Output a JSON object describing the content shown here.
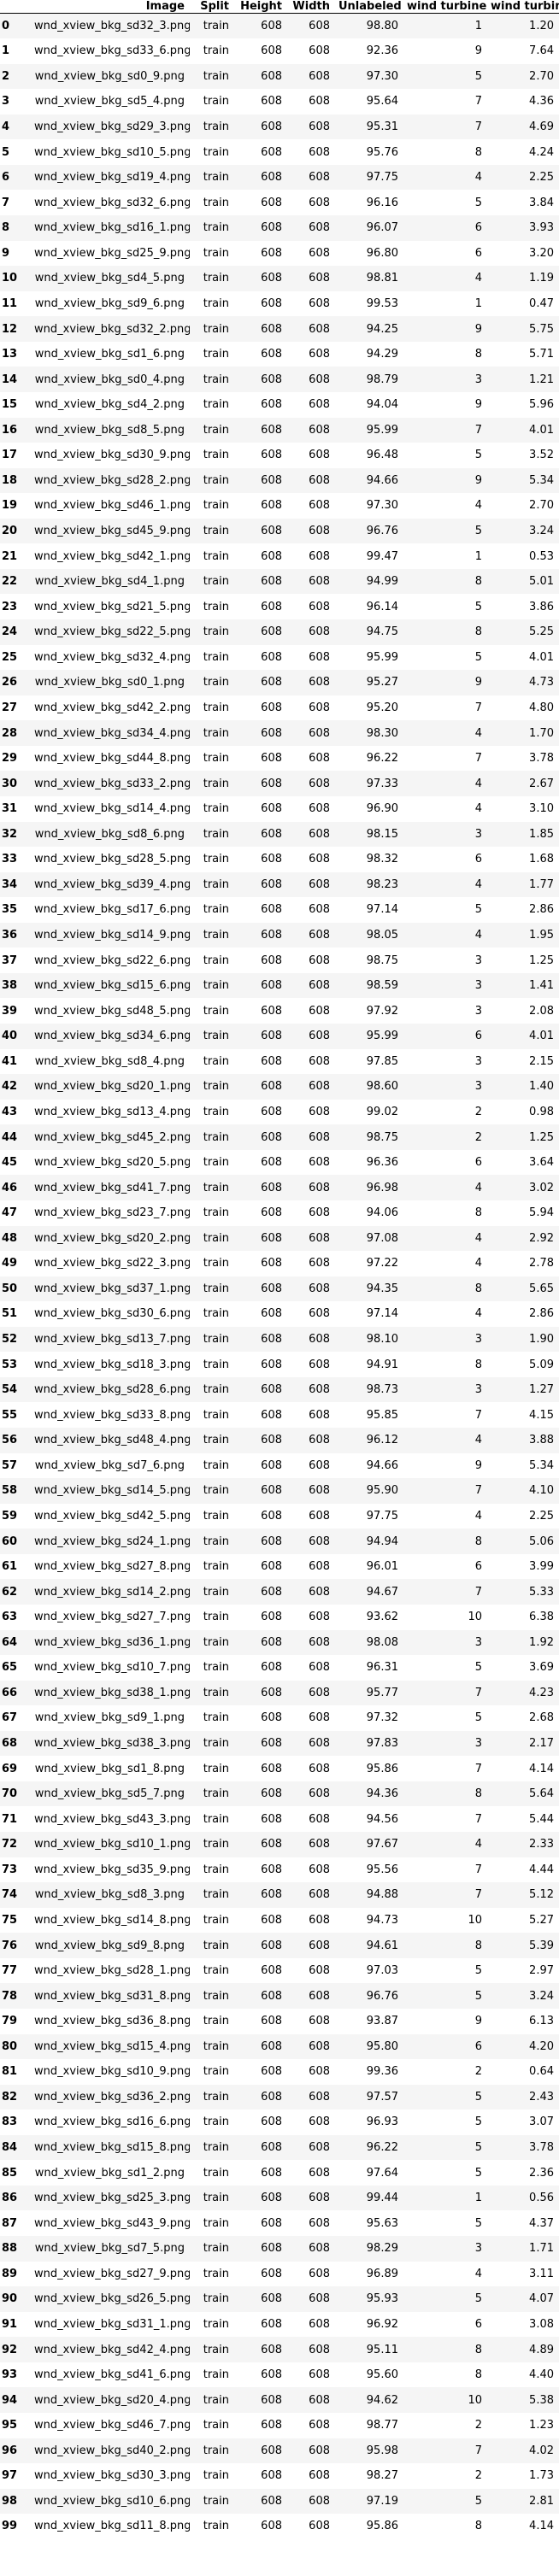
{
  "table": {
    "columns": [
      "",
      "Image",
      "Split",
      "Height",
      "Width",
      "Unlabeled",
      "wind turbine",
      "wind turbine"
    ],
    "rows": [
      [
        "0",
        "wnd_xview_bkg_sd32_3.png",
        "train",
        "608",
        "608",
        "98.80",
        "1",
        "1.20"
      ],
      [
        "1",
        "wnd_xview_bkg_sd33_6.png",
        "train",
        "608",
        "608",
        "92.36",
        "9",
        "7.64"
      ],
      [
        "2",
        "wnd_xview_bkg_sd0_9.png",
        "train",
        "608",
        "608",
        "97.30",
        "5",
        "2.70"
      ],
      [
        "3",
        "wnd_xview_bkg_sd5_4.png",
        "train",
        "608",
        "608",
        "95.64",
        "7",
        "4.36"
      ],
      [
        "4",
        "wnd_xview_bkg_sd29_3.png",
        "train",
        "608",
        "608",
        "95.31",
        "7",
        "4.69"
      ],
      [
        "5",
        "wnd_xview_bkg_sd10_5.png",
        "train",
        "608",
        "608",
        "95.76",
        "8",
        "4.24"
      ],
      [
        "6",
        "wnd_xview_bkg_sd19_4.png",
        "train",
        "608",
        "608",
        "97.75",
        "4",
        "2.25"
      ],
      [
        "7",
        "wnd_xview_bkg_sd32_6.png",
        "train",
        "608",
        "608",
        "96.16",
        "5",
        "3.84"
      ],
      [
        "8",
        "wnd_xview_bkg_sd16_1.png",
        "train",
        "608",
        "608",
        "96.07",
        "6",
        "3.93"
      ],
      [
        "9",
        "wnd_xview_bkg_sd25_9.png",
        "train",
        "608",
        "608",
        "96.80",
        "6",
        "3.20"
      ],
      [
        "10",
        "wnd_xview_bkg_sd4_5.png",
        "train",
        "608",
        "608",
        "98.81",
        "4",
        "1.19"
      ],
      [
        "11",
        "wnd_xview_bkg_sd9_6.png",
        "train",
        "608",
        "608",
        "99.53",
        "1",
        "0.47"
      ],
      [
        "12",
        "wnd_xview_bkg_sd32_2.png",
        "train",
        "608",
        "608",
        "94.25",
        "9",
        "5.75"
      ],
      [
        "13",
        "wnd_xview_bkg_sd1_6.png",
        "train",
        "608",
        "608",
        "94.29",
        "8",
        "5.71"
      ],
      [
        "14",
        "wnd_xview_bkg_sd0_4.png",
        "train",
        "608",
        "608",
        "98.79",
        "3",
        "1.21"
      ],
      [
        "15",
        "wnd_xview_bkg_sd4_2.png",
        "train",
        "608",
        "608",
        "94.04",
        "9",
        "5.96"
      ],
      [
        "16",
        "wnd_xview_bkg_sd8_5.png",
        "train",
        "608",
        "608",
        "95.99",
        "7",
        "4.01"
      ],
      [
        "17",
        "wnd_xview_bkg_sd30_9.png",
        "train",
        "608",
        "608",
        "96.48",
        "5",
        "3.52"
      ],
      [
        "18",
        "wnd_xview_bkg_sd28_2.png",
        "train",
        "608",
        "608",
        "94.66",
        "9",
        "5.34"
      ],
      [
        "19",
        "wnd_xview_bkg_sd46_1.png",
        "train",
        "608",
        "608",
        "97.30",
        "4",
        "2.70"
      ],
      [
        "20",
        "wnd_xview_bkg_sd45_9.png",
        "train",
        "608",
        "608",
        "96.76",
        "5",
        "3.24"
      ],
      [
        "21",
        "wnd_xview_bkg_sd42_1.png",
        "train",
        "608",
        "608",
        "99.47",
        "1",
        "0.53"
      ],
      [
        "22",
        "wnd_xview_bkg_sd4_1.png",
        "train",
        "608",
        "608",
        "94.99",
        "8",
        "5.01"
      ],
      [
        "23",
        "wnd_xview_bkg_sd21_5.png",
        "train",
        "608",
        "608",
        "96.14",
        "5",
        "3.86"
      ],
      [
        "24",
        "wnd_xview_bkg_sd22_5.png",
        "train",
        "608",
        "608",
        "94.75",
        "8",
        "5.25"
      ],
      [
        "25",
        "wnd_xview_bkg_sd32_4.png",
        "train",
        "608",
        "608",
        "95.99",
        "5",
        "4.01"
      ],
      [
        "26",
        "wnd_xview_bkg_sd0_1.png",
        "train",
        "608",
        "608",
        "95.27",
        "9",
        "4.73"
      ],
      [
        "27",
        "wnd_xview_bkg_sd42_2.png",
        "train",
        "608",
        "608",
        "95.20",
        "7",
        "4.80"
      ],
      [
        "28",
        "wnd_xview_bkg_sd34_4.png",
        "train",
        "608",
        "608",
        "98.30",
        "4",
        "1.70"
      ],
      [
        "29",
        "wnd_xview_bkg_sd44_8.png",
        "train",
        "608",
        "608",
        "96.22",
        "7",
        "3.78"
      ],
      [
        "30",
        "wnd_xview_bkg_sd33_2.png",
        "train",
        "608",
        "608",
        "97.33",
        "4",
        "2.67"
      ],
      [
        "31",
        "wnd_xview_bkg_sd14_4.png",
        "train",
        "608",
        "608",
        "96.90",
        "4",
        "3.10"
      ],
      [
        "32",
        "wnd_xview_bkg_sd8_6.png",
        "train",
        "608",
        "608",
        "98.15",
        "3",
        "1.85"
      ],
      [
        "33",
        "wnd_xview_bkg_sd28_5.png",
        "train",
        "608",
        "608",
        "98.32",
        "6",
        "1.68"
      ],
      [
        "34",
        "wnd_xview_bkg_sd39_4.png",
        "train",
        "608",
        "608",
        "98.23",
        "4",
        "1.77"
      ],
      [
        "35",
        "wnd_xview_bkg_sd17_6.png",
        "train",
        "608",
        "608",
        "97.14",
        "5",
        "2.86"
      ],
      [
        "36",
        "wnd_xview_bkg_sd14_9.png",
        "train",
        "608",
        "608",
        "98.05",
        "4",
        "1.95"
      ],
      [
        "37",
        "wnd_xview_bkg_sd22_6.png",
        "train",
        "608",
        "608",
        "98.75",
        "3",
        "1.25"
      ],
      [
        "38",
        "wnd_xview_bkg_sd15_6.png",
        "train",
        "608",
        "608",
        "98.59",
        "3",
        "1.41"
      ],
      [
        "39",
        "wnd_xview_bkg_sd48_5.png",
        "train",
        "608",
        "608",
        "97.92",
        "3",
        "2.08"
      ],
      [
        "40",
        "wnd_xview_bkg_sd34_6.png",
        "train",
        "608",
        "608",
        "95.99",
        "6",
        "4.01"
      ],
      [
        "41",
        "wnd_xview_bkg_sd8_4.png",
        "train",
        "608",
        "608",
        "97.85",
        "3",
        "2.15"
      ],
      [
        "42",
        "wnd_xview_bkg_sd20_1.png",
        "train",
        "608",
        "608",
        "98.60",
        "3",
        "1.40"
      ],
      [
        "43",
        "wnd_xview_bkg_sd13_4.png",
        "train",
        "608",
        "608",
        "99.02",
        "2",
        "0.98"
      ],
      [
        "44",
        "wnd_xview_bkg_sd45_2.png",
        "train",
        "608",
        "608",
        "98.75",
        "2",
        "1.25"
      ],
      [
        "45",
        "wnd_xview_bkg_sd20_5.png",
        "train",
        "608",
        "608",
        "96.36",
        "6",
        "3.64"
      ],
      [
        "46",
        "wnd_xview_bkg_sd41_7.png",
        "train",
        "608",
        "608",
        "96.98",
        "4",
        "3.02"
      ],
      [
        "47",
        "wnd_xview_bkg_sd23_7.png",
        "train",
        "608",
        "608",
        "94.06",
        "8",
        "5.94"
      ],
      [
        "48",
        "wnd_xview_bkg_sd20_2.png",
        "train",
        "608",
        "608",
        "97.08",
        "4",
        "2.92"
      ],
      [
        "49",
        "wnd_xview_bkg_sd22_3.png",
        "train",
        "608",
        "608",
        "97.22",
        "4",
        "2.78"
      ],
      [
        "50",
        "wnd_xview_bkg_sd37_1.png",
        "train",
        "608",
        "608",
        "94.35",
        "8",
        "5.65"
      ],
      [
        "51",
        "wnd_xview_bkg_sd30_6.png",
        "train",
        "608",
        "608",
        "97.14",
        "4",
        "2.86"
      ],
      [
        "52",
        "wnd_xview_bkg_sd13_7.png",
        "train",
        "608",
        "608",
        "98.10",
        "3",
        "1.90"
      ],
      [
        "53",
        "wnd_xview_bkg_sd18_3.png",
        "train",
        "608",
        "608",
        "94.91",
        "8",
        "5.09"
      ],
      [
        "54",
        "wnd_xview_bkg_sd28_6.png",
        "train",
        "608",
        "608",
        "98.73",
        "3",
        "1.27"
      ],
      [
        "55",
        "wnd_xview_bkg_sd33_8.png",
        "train",
        "608",
        "608",
        "95.85",
        "7",
        "4.15"
      ],
      [
        "56",
        "wnd_xview_bkg_sd48_4.png",
        "train",
        "608",
        "608",
        "96.12",
        "4",
        "3.88"
      ],
      [
        "57",
        "wnd_xview_bkg_sd7_6.png",
        "train",
        "608",
        "608",
        "94.66",
        "9",
        "5.34"
      ],
      [
        "58",
        "wnd_xview_bkg_sd14_5.png",
        "train",
        "608",
        "608",
        "95.90",
        "7",
        "4.10"
      ],
      [
        "59",
        "wnd_xview_bkg_sd42_5.png",
        "train",
        "608",
        "608",
        "97.75",
        "4",
        "2.25"
      ],
      [
        "60",
        "wnd_xview_bkg_sd24_1.png",
        "train",
        "608",
        "608",
        "94.94",
        "8",
        "5.06"
      ],
      [
        "61",
        "wnd_xview_bkg_sd27_8.png",
        "train",
        "608",
        "608",
        "96.01",
        "6",
        "3.99"
      ],
      [
        "62",
        "wnd_xview_bkg_sd14_2.png",
        "train",
        "608",
        "608",
        "94.67",
        "7",
        "5.33"
      ],
      [
        "63",
        "wnd_xview_bkg_sd27_7.png",
        "train",
        "608",
        "608",
        "93.62",
        "10",
        "6.38"
      ],
      [
        "64",
        "wnd_xview_bkg_sd36_1.png",
        "train",
        "608",
        "608",
        "98.08",
        "3",
        "1.92"
      ],
      [
        "65",
        "wnd_xview_bkg_sd10_7.png",
        "train",
        "608",
        "608",
        "96.31",
        "5",
        "3.69"
      ],
      [
        "66",
        "wnd_xview_bkg_sd38_1.png",
        "train",
        "608",
        "608",
        "95.77",
        "7",
        "4.23"
      ],
      [
        "67",
        "wnd_xview_bkg_sd9_1.png",
        "train",
        "608",
        "608",
        "97.32",
        "5",
        "2.68"
      ],
      [
        "68",
        "wnd_xview_bkg_sd38_3.png",
        "train",
        "608",
        "608",
        "97.83",
        "3",
        "2.17"
      ],
      [
        "69",
        "wnd_xview_bkg_sd1_8.png",
        "train",
        "608",
        "608",
        "95.86",
        "7",
        "4.14"
      ],
      [
        "70",
        "wnd_xview_bkg_sd5_7.png",
        "train",
        "608",
        "608",
        "94.36",
        "8",
        "5.64"
      ],
      [
        "71",
        "wnd_xview_bkg_sd43_3.png",
        "train",
        "608",
        "608",
        "94.56",
        "7",
        "5.44"
      ],
      [
        "72",
        "wnd_xview_bkg_sd10_1.png",
        "train",
        "608",
        "608",
        "97.67",
        "4",
        "2.33"
      ],
      [
        "73",
        "wnd_xview_bkg_sd35_9.png",
        "train",
        "608",
        "608",
        "95.56",
        "7",
        "4.44"
      ],
      [
        "74",
        "wnd_xview_bkg_sd8_3.png",
        "train",
        "608",
        "608",
        "94.88",
        "7",
        "5.12"
      ],
      [
        "75",
        "wnd_xview_bkg_sd14_8.png",
        "train",
        "608",
        "608",
        "94.73",
        "10",
        "5.27"
      ],
      [
        "76",
        "wnd_xview_bkg_sd9_8.png",
        "train",
        "608",
        "608",
        "94.61",
        "8",
        "5.39"
      ],
      [
        "77",
        "wnd_xview_bkg_sd28_1.png",
        "train",
        "608",
        "608",
        "97.03",
        "5",
        "2.97"
      ],
      [
        "78",
        "wnd_xview_bkg_sd31_8.png",
        "train",
        "608",
        "608",
        "96.76",
        "5",
        "3.24"
      ],
      [
        "79",
        "wnd_xview_bkg_sd36_8.png",
        "train",
        "608",
        "608",
        "93.87",
        "9",
        "6.13"
      ],
      [
        "80",
        "wnd_xview_bkg_sd15_4.png",
        "train",
        "608",
        "608",
        "95.80",
        "6",
        "4.20"
      ],
      [
        "81",
        "wnd_xview_bkg_sd10_9.png",
        "train",
        "608",
        "608",
        "99.36",
        "2",
        "0.64"
      ],
      [
        "82",
        "wnd_xview_bkg_sd36_2.png",
        "train",
        "608",
        "608",
        "97.57",
        "5",
        "2.43"
      ],
      [
        "83",
        "wnd_xview_bkg_sd16_6.png",
        "train",
        "608",
        "608",
        "96.93",
        "5",
        "3.07"
      ],
      [
        "84",
        "wnd_xview_bkg_sd15_8.png",
        "train",
        "608",
        "608",
        "96.22",
        "5",
        "3.78"
      ],
      [
        "85",
        "wnd_xview_bkg_sd1_2.png",
        "train",
        "608",
        "608",
        "97.64",
        "5",
        "2.36"
      ],
      [
        "86",
        "wnd_xview_bkg_sd25_3.png",
        "train",
        "608",
        "608",
        "99.44",
        "1",
        "0.56"
      ],
      [
        "87",
        "wnd_xview_bkg_sd43_9.png",
        "train",
        "608",
        "608",
        "95.63",
        "5",
        "4.37"
      ],
      [
        "88",
        "wnd_xview_bkg_sd7_5.png",
        "train",
        "608",
        "608",
        "98.29",
        "3",
        "1.71"
      ],
      [
        "89",
        "wnd_xview_bkg_sd27_9.png",
        "train",
        "608",
        "608",
        "96.89",
        "4",
        "3.11"
      ],
      [
        "90",
        "wnd_xview_bkg_sd26_5.png",
        "train",
        "608",
        "608",
        "95.93",
        "5",
        "4.07"
      ],
      [
        "91",
        "wnd_xview_bkg_sd31_1.png",
        "train",
        "608",
        "608",
        "96.92",
        "6",
        "3.08"
      ],
      [
        "92",
        "wnd_xview_bkg_sd42_4.png",
        "train",
        "608",
        "608",
        "95.11",
        "8",
        "4.89"
      ],
      [
        "93",
        "wnd_xview_bkg_sd41_6.png",
        "train",
        "608",
        "608",
        "95.60",
        "8",
        "4.40"
      ],
      [
        "94",
        "wnd_xview_bkg_sd20_4.png",
        "train",
        "608",
        "608",
        "94.62",
        "10",
        "5.38"
      ],
      [
        "95",
        "wnd_xview_bkg_sd46_7.png",
        "train",
        "608",
        "608",
        "98.77",
        "2",
        "1.23"
      ],
      [
        "96",
        "wnd_xview_bkg_sd40_2.png",
        "train",
        "608",
        "608",
        "95.98",
        "7",
        "4.02"
      ],
      [
        "97",
        "wnd_xview_bkg_sd30_3.png",
        "train",
        "608",
        "608",
        "98.27",
        "2",
        "1.73"
      ],
      [
        "98",
        "wnd_xview_bkg_sd10_6.png",
        "train",
        "608",
        "608",
        "97.19",
        "5",
        "2.81"
      ],
      [
        "99",
        "wnd_xview_bkg_sd11_8.png",
        "train",
        "608",
        "608",
        "95.86",
        "8",
        "4.14"
      ]
    ]
  }
}
